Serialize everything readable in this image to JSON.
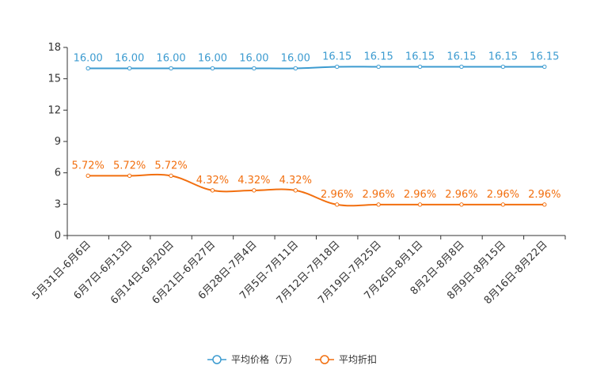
{
  "chart_data": {
    "type": "line",
    "title": "",
    "xlabel": "",
    "ylabel": "",
    "ylim": [
      0,
      18
    ],
    "yticks": [
      0,
      3,
      6,
      9,
      12,
      15,
      18
    ],
    "grid": false,
    "legend_position": "bottom-center",
    "categories": [
      "5月31日-6月6日",
      "6月7日-6月13日",
      "6月14日-6月20日",
      "6月21日-6月27日",
      "6月28日-7月4日",
      "7月5日-7月11日",
      "7月12日-7月18日",
      "7月19日-7月25日",
      "7月26日-8月1日",
      "8月2日-8月8日",
      "8月9日-8月15日",
      "8月16日-8月22日"
    ],
    "series": [
      {
        "name": "平均价格（万）",
        "color": "#3c9bd0",
        "values": [
          16.0,
          16.0,
          16.0,
          16.0,
          16.0,
          16.0,
          16.15,
          16.15,
          16.15,
          16.15,
          16.15,
          16.15
        ],
        "labels": [
          "16.00",
          "16.00",
          "16.00",
          "16.00",
          "16.00",
          "16.00",
          "16.15",
          "16.15",
          "16.15",
          "16.15",
          "16.15",
          "16.15"
        ]
      },
      {
        "name": "平均折扣",
        "color": "#f26f0f",
        "values": [
          5.72,
          5.72,
          5.72,
          4.32,
          4.32,
          4.32,
          2.96,
          2.96,
          2.96,
          2.96,
          2.96,
          2.96
        ],
        "labels": [
          "5.72%",
          "5.72%",
          "5.72%",
          "4.32%",
          "4.32%",
          "4.32%",
          "2.96%",
          "2.96%",
          "2.96%",
          "2.96%",
          "2.96%",
          "2.96%"
        ]
      }
    ]
  }
}
